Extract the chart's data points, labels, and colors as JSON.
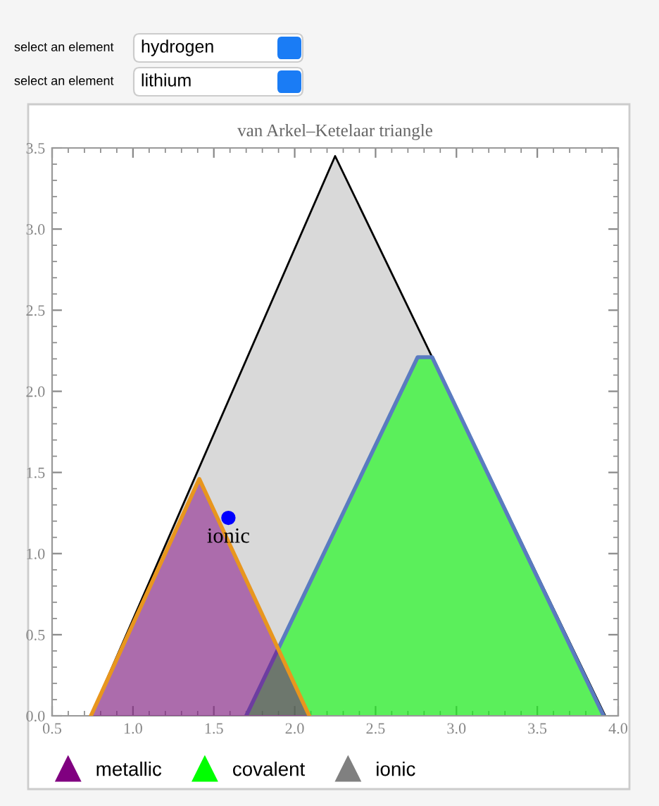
{
  "chart_data": {
    "type": "area",
    "title": "van Arkel–Ketelaar triangle",
    "annotations": [
      "select an element",
      "hydrogen",
      "select an element",
      "lithium",
      {
        "text": "ionic",
        "x": 1.59,
        "y": 1.22
      }
    ],
    "series": [
      {
        "name": "ionic",
        "color": "#808080",
        "x": [
          0.74,
          2.25,
          3.92
        ],
        "values": [
          0,
          3.45,
          0
        ]
      },
      {
        "name": "metallic",
        "color": "#800080",
        "x": [
          0.74,
          1.41,
          2.09
        ],
        "values": [
          0,
          1.46,
          0
        ]
      },
      {
        "name": "covalent",
        "color": "#00ff00",
        "x": [
          1.7,
          2.76,
          2.85,
          3.91
        ],
        "values": [
          0,
          2.21,
          2.21,
          0
        ]
      },
      {
        "type": "scatter",
        "color": "#0000ff",
        "x": [
          1.59
        ],
        "values": [
          1.22
        ],
        "marker": "circle"
      }
    ],
    "xlim": [
      0.5,
      4.0
    ],
    "ylim": [
      0,
      3.5
    ],
    "xticks": [
      0.5,
      {
        "value": 1,
        "label": "1.0"
      },
      1.5,
      {
        "value": 2,
        "label": "2.0"
      },
      2.5,
      {
        "value": 3,
        "label": "3.0"
      },
      3.5,
      {
        "value": 4,
        "label": "4.0"
      }
    ],
    "yticks": [
      {
        "value": 0,
        "label": "0.0"
      },
      0.5,
      {
        "value": 1,
        "label": "1.0"
      },
      1.5,
      {
        "value": 2,
        "label": "2.0"
      },
      2.5,
      {
        "value": 3,
        "label": "3.0"
      },
      3.5
    ],
    "grid": false,
    "legend": "bottom"
  }
}
